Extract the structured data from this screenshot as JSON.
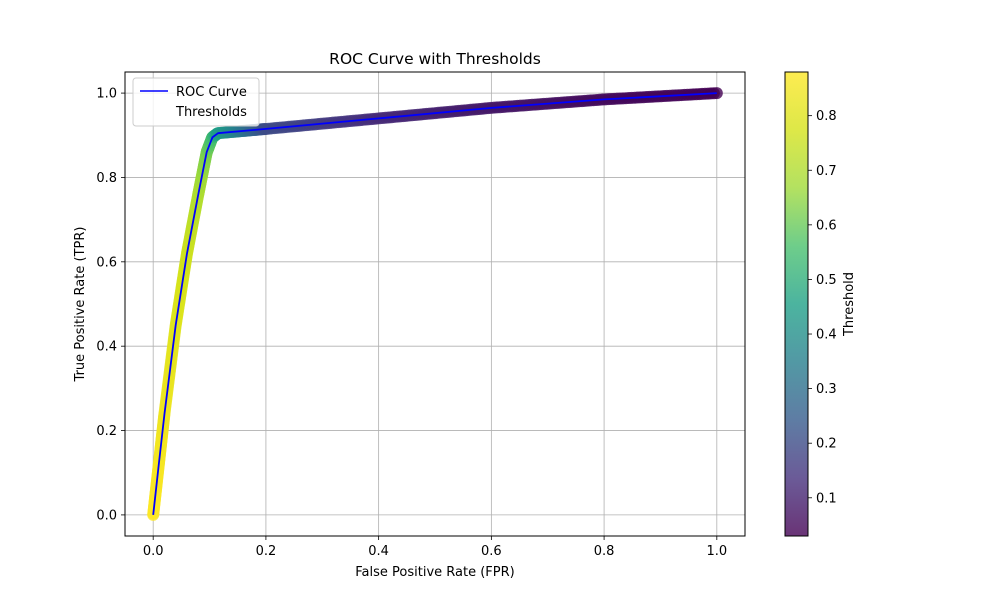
{
  "chart_data": {
    "type": "scatter",
    "title": "ROC Curve with Thresholds",
    "xlabel": "False Positive Rate (FPR)",
    "ylabel": "True Positive Rate (TPR)",
    "xlim": [
      -0.05,
      1.05
    ],
    "ylim": [
      -0.05,
      1.05
    ],
    "xticks": [
      "0.0",
      "0.2",
      "0.4",
      "0.6",
      "0.8",
      "1.0"
    ],
    "yticks": [
      "0.0",
      "0.2",
      "0.4",
      "0.6",
      "0.8",
      "1.0"
    ],
    "grid": true,
    "legend": {
      "placement": "top-left",
      "entries": [
        "ROC Curve",
        "Thresholds"
      ]
    },
    "colorbar": {
      "label": "Threshold",
      "range": [
        0.03,
        0.88
      ],
      "ticks": [
        "0.1",
        "0.2",
        "0.3",
        "0.4",
        "0.5",
        "0.6",
        "0.7",
        "0.8"
      ],
      "colormap": "viridis"
    },
    "series": [
      {
        "name": "ROC Curve",
        "color": "#0000ff",
        "x": [
          0.0,
          0.01,
          0.02,
          0.04,
          0.06,
          0.08,
          0.095,
          0.105,
          0.115,
          0.2,
          0.4,
          0.6,
          0.8,
          1.0
        ],
        "y": [
          0.0,
          0.12,
          0.24,
          0.45,
          0.62,
          0.76,
          0.86,
          0.895,
          0.905,
          0.915,
          0.94,
          0.965,
          0.985,
          1.0
        ]
      },
      {
        "name": "Thresholds",
        "x": [
          0.0,
          0.01,
          0.02,
          0.04,
          0.06,
          0.08,
          0.095,
          0.105,
          0.115,
          0.2,
          0.4,
          0.6,
          0.8,
          1.0
        ],
        "y": [
          0.0,
          0.12,
          0.24,
          0.45,
          0.62,
          0.76,
          0.86,
          0.895,
          0.905,
          0.915,
          0.94,
          0.965,
          0.985,
          1.0
        ],
        "threshold": [
          0.88,
          0.86,
          0.84,
          0.8,
          0.76,
          0.7,
          0.62,
          0.55,
          0.45,
          0.2,
          0.12,
          0.08,
          0.05,
          0.03
        ]
      }
    ]
  }
}
